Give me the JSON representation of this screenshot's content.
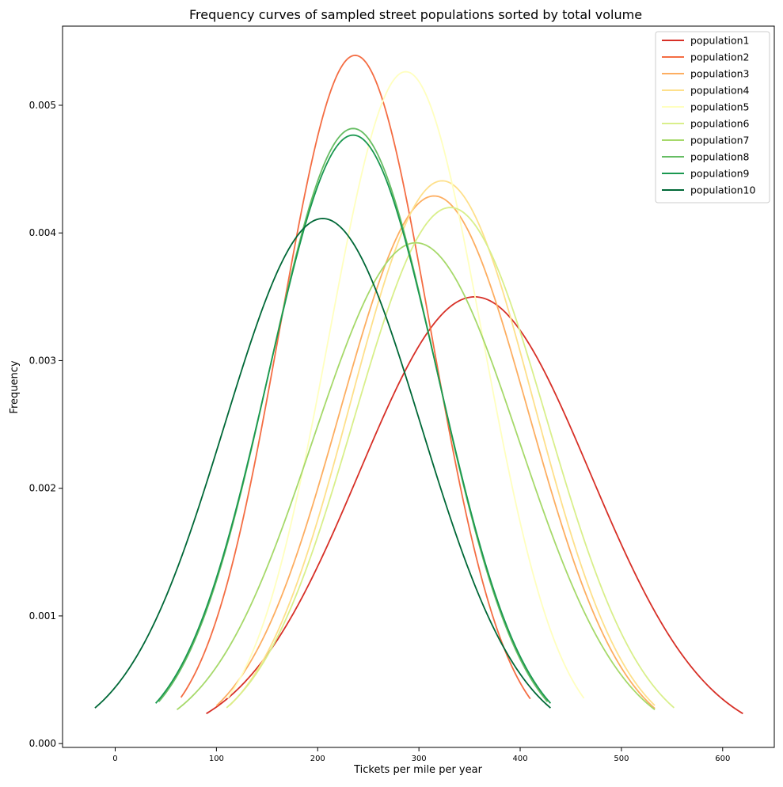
{
  "chart_data": {
    "type": "line",
    "title": "Frequency curves of sampled street populations sorted by total volume",
    "xlabel": "Tickets per mile per year",
    "ylabel": "Frequency",
    "xlim": [
      -52,
      651
    ],
    "ylim": [
      -3e-05,
      0.00562
    ],
    "xticks": [
      0,
      100,
      200,
      300,
      400,
      500,
      600
    ],
    "xtick_labels": [
      "0",
      "100",
      "200",
      "300",
      "400",
      "500",
      "600"
    ],
    "yticks": [
      0.0,
      0.001,
      0.002,
      0.003,
      0.004,
      0.005
    ],
    "ytick_labels": [
      "0.000",
      "0.001",
      "0.002",
      "0.003",
      "0.004",
      "0.005"
    ],
    "grid": false,
    "legend_position": "top-right",
    "series": [
      {
        "name": "population1",
        "color": "#d73027",
        "mean": 355,
        "sd": 114,
        "x_range": [
          90,
          620
        ]
      },
      {
        "name": "population2",
        "color": "#f46d43",
        "mean": 237,
        "sd": 74,
        "x_range": [
          65,
          410
        ]
      },
      {
        "name": "population3",
        "color": "#fdae61",
        "mean": 315,
        "sd": 93,
        "x_range": [
          100,
          533
        ]
      },
      {
        "name": "population4",
        "color": "#fee08b",
        "mean": 323,
        "sd": 90.5,
        "x_range": [
          113,
          533
        ]
      },
      {
        "name": "population5",
        "color": "#ffffbf",
        "mean": 287,
        "sd": 75.8,
        "x_range": [
          111,
          463
        ]
      },
      {
        "name": "population6",
        "color": "#d9ef8b",
        "mean": 331,
        "sd": 95,
        "x_range": [
          110,
          552
        ]
      },
      {
        "name": "population7",
        "color": "#a6d96a",
        "mean": 297,
        "sd": 101.7,
        "x_range": [
          61,
          533
        ]
      },
      {
        "name": "population8",
        "color": "#66bd63",
        "mean": 235,
        "sd": 82.8,
        "x_range": [
          43,
          427
        ]
      },
      {
        "name": "population9",
        "color": "#1a9850",
        "mean": 235,
        "sd": 83.7,
        "x_range": [
          40,
          430
        ]
      },
      {
        "name": "population10",
        "color": "#006837",
        "mean": 205,
        "sd": 97,
        "x_range": [
          -20,
          430
        ]
      }
    ]
  }
}
